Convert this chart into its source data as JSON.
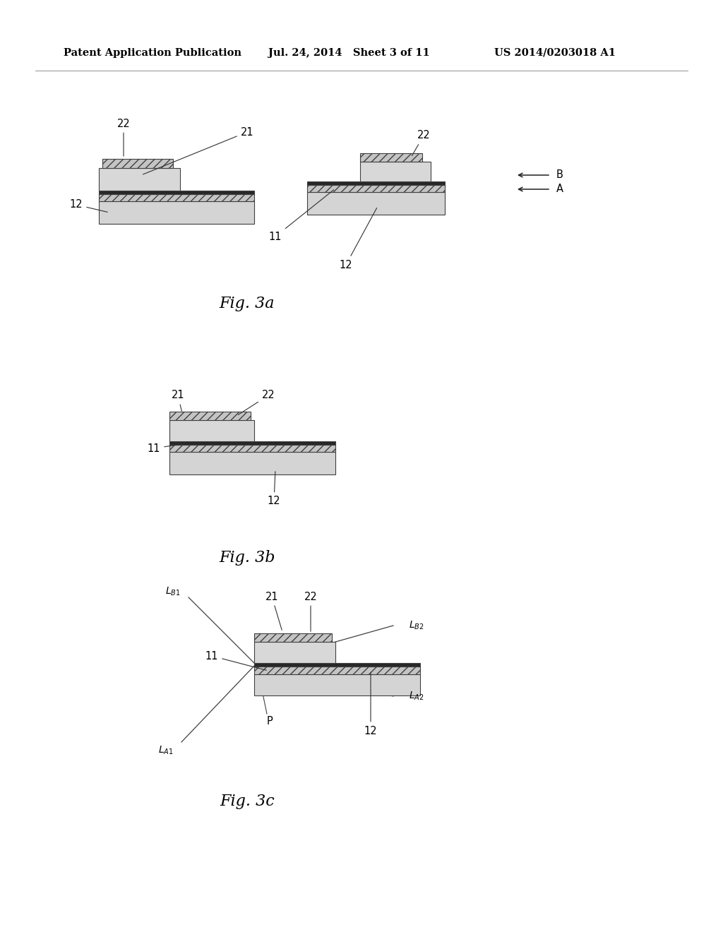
{
  "title_left": "Patent Application Publication",
  "title_mid": "Jul. 24, 2014   Sheet 3 of 11",
  "title_right": "US 2014/0203018 A1",
  "fig3a_label": "Fig. 3a",
  "fig3b_label": "Fig. 3b",
  "fig3c_label": "Fig. 3c",
  "bg_color": "#ffffff",
  "black": "#000000",
  "light_gray": "#d8d8d8",
  "mid_gray": "#c4c4c4",
  "hatch_gray": "#c0c0c0",
  "dark_strip": "#303030",
  "edge_color": "#404040"
}
